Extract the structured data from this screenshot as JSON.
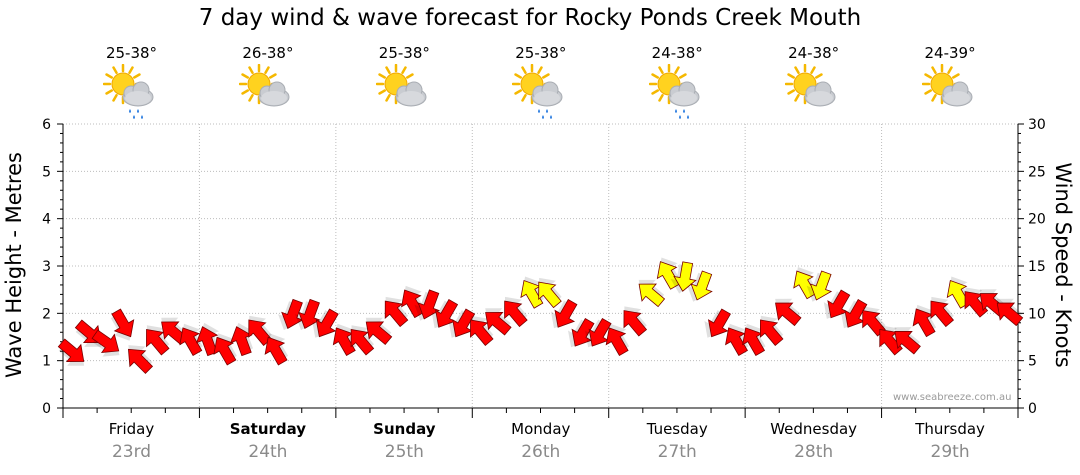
{
  "title": "7 day wind & wave forecast for Rocky Ponds Creek Mouth",
  "watermark": "www.seabreeze.com.au",
  "days": [
    {
      "name": "Friday",
      "date": "23rd",
      "temp": "25-38°",
      "icon": "sun-cloud-rain-icon",
      "bold": false
    },
    {
      "name": "Saturday",
      "date": "24th",
      "temp": "26-38°",
      "icon": "sun-cloud-icon",
      "bold": true
    },
    {
      "name": "Sunday",
      "date": "25th",
      "temp": "25-38°",
      "icon": "sun-cloud-icon",
      "bold": true
    },
    {
      "name": "Monday",
      "date": "26th",
      "temp": "25-38°",
      "icon": "sun-cloud-rain-icon",
      "bold": false
    },
    {
      "name": "Tuesday",
      "date": "27th",
      "temp": "24-38°",
      "icon": "sun-cloud-rain-icon",
      "bold": false
    },
    {
      "name": "Wednesday",
      "date": "28th",
      "temp": "24-38°",
      "icon": "sun-cloud-icon",
      "bold": false
    },
    {
      "name": "Thursday",
      "date": "29th",
      "temp": "24-39°",
      "icon": "sun-cloud-icon",
      "bold": false
    }
  ],
  "chart_data": {
    "type": "line",
    "title": "7 day wind & wave forecast for Rocky Ponds Creek Mouth",
    "ylabel_left": "Wave Height - Metres",
    "ylabel_right": "Wind Speed - Knots",
    "y_left_range": [
      0,
      6
    ],
    "y_left_ticks": [
      0,
      1,
      2,
      3,
      4,
      5,
      6
    ],
    "y_right_range": [
      0,
      30
    ],
    "y_right_ticks": [
      0,
      5,
      10,
      15,
      20,
      25,
      30
    ],
    "x_categories": [
      "Friday",
      "Saturday",
      "Sunday",
      "Monday",
      "Tuesday",
      "Wednesday",
      "Thursday"
    ],
    "grid": true,
    "series": [
      {
        "kind": "wind-arrows",
        "colors": {
          "normal": "#ff0000",
          "strong": "#ffff00",
          "outline": "#7a0000"
        },
        "day_hours": [
          0,
          3,
          6,
          9,
          12,
          15,
          18,
          21
        ],
        "speeds_knots": [
          6,
          8,
          7,
          9,
          5,
          7,
          8,
          7,
          7,
          6,
          7,
          8,
          6,
          10,
          10,
          9,
          7,
          7,
          8,
          10,
          11,
          11,
          10,
          9,
          8,
          9,
          10,
          12,
          12,
          10,
          8,
          8,
          7,
          9,
          12,
          14,
          14,
          13,
          9,
          7,
          7,
          8,
          10,
          13,
          13,
          11,
          10,
          9,
          7,
          7,
          9,
          10,
          12,
          11,
          11,
          10
        ],
        "directions_deg": [
          40,
          40,
          35,
          60,
          225,
          230,
          220,
          240,
          250,
          240,
          250,
          230,
          240,
          110,
          110,
          120,
          240,
          230,
          220,
          230,
          240,
          110,
          120,
          120,
          230,
          220,
          230,
          240,
          230,
          120,
          120,
          120,
          240,
          230,
          220,
          240,
          100,
          110,
          120,
          240,
          240,
          230,
          220,
          240,
          110,
          120,
          120,
          230,
          230,
          220,
          240,
          230,
          240,
          230,
          220,
          220
        ]
      }
    ]
  }
}
